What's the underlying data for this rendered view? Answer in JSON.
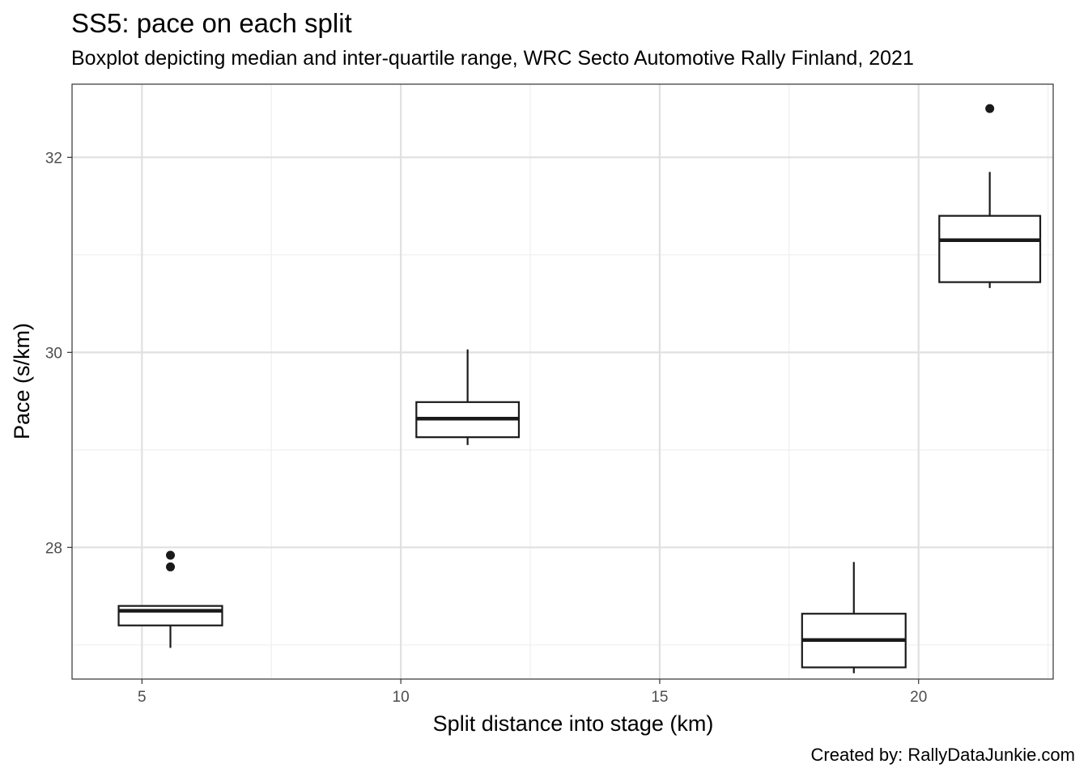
{
  "chart_data": {
    "type": "boxplot",
    "title": "SS5: pace on each split",
    "subtitle": "Boxplot depicting median and inter-quartile range, WRC Secto Automotive Rally Finland, 2021",
    "xlabel": "Split distance into stage (km)",
    "ylabel": "Pace (s/km)",
    "caption": "Created by: RallyDataJunkie.com",
    "xlim": [
      3.65,
      22.6
    ],
    "ylim": [
      26.65,
      32.75
    ],
    "x_ticks": [
      5,
      10,
      15,
      20
    ],
    "y_ticks": [
      28,
      30,
      32
    ],
    "grid": true,
    "colors": {
      "box": "#1a1a1a",
      "grid_major": "#e0e0e0",
      "grid_minor": "#efefef",
      "panel_border": "#333333"
    },
    "boxes": [
      {
        "x_from": 4.55,
        "x_to": 6.55,
        "whisker_low": 26.97,
        "q1": 27.2,
        "median": 27.35,
        "q3": 27.4,
        "whisker_high": 27.4,
        "outliers": [
          27.8,
          27.92
        ]
      },
      {
        "x_from": 10.3,
        "x_to": 12.28,
        "whisker_low": 29.05,
        "q1": 29.13,
        "median": 29.32,
        "q3": 29.49,
        "whisker_high": 30.03,
        "outliers": []
      },
      {
        "x_from": 17.75,
        "x_to": 19.75,
        "whisker_low": 26.71,
        "q1": 26.77,
        "median": 27.05,
        "q3": 27.32,
        "whisker_high": 27.85,
        "outliers": []
      },
      {
        "x_from": 20.4,
        "x_to": 22.35,
        "whisker_low": 30.66,
        "q1": 30.72,
        "median": 31.15,
        "q3": 31.4,
        "whisker_high": 31.85,
        "outliers": [
          32.5
        ]
      }
    ]
  }
}
